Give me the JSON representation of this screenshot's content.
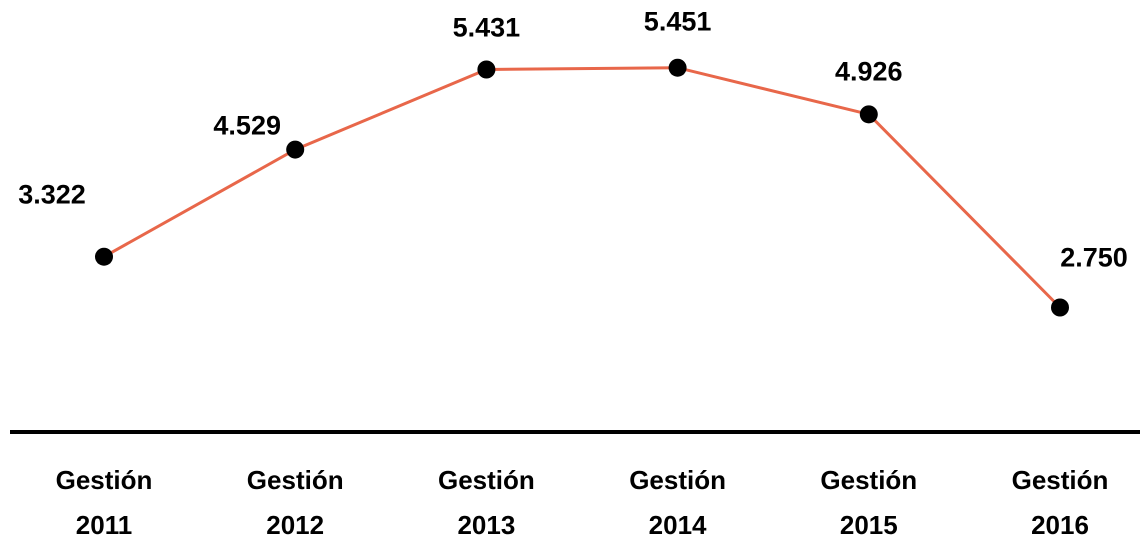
{
  "chart_data": {
    "type": "line",
    "categories": [
      [
        "Gestión",
        "2011"
      ],
      [
        "Gestión",
        "2012"
      ],
      [
        "Gestión",
        "2013"
      ],
      [
        "Gestión",
        "2014"
      ],
      [
        "Gestión",
        "2015"
      ],
      [
        "Gestión",
        "2016"
      ]
    ],
    "values": [
      3322,
      4529,
      5431,
      5451,
      4926,
      2750
    ],
    "data_labels": [
      "3.322",
      "4.529",
      "5.431",
      "5.451",
      "4.926",
      "2.750"
    ],
    "title": "",
    "xlabel": "",
    "ylabel": "",
    "grid": false,
    "legend": "none",
    "colors": {
      "line": "#e8674a",
      "marker": "#000000",
      "axis": "#000000"
    }
  }
}
